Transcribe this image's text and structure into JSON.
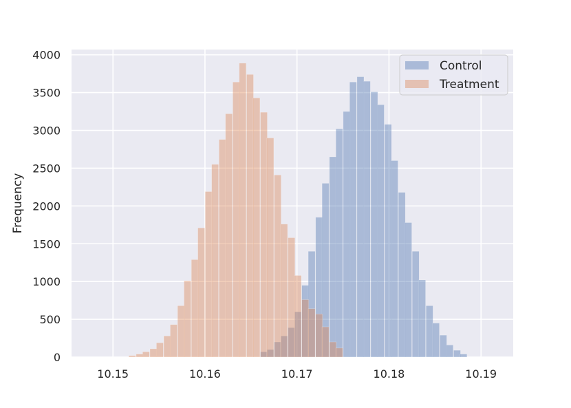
{
  "chart_data": {
    "type": "bar",
    "xlabel": "",
    "ylabel": "Frequency",
    "xlim": [
      10.1455,
      10.1935
    ],
    "ylim": [
      0,
      4070
    ],
    "xticks": [
      10.15,
      10.16,
      10.17,
      10.18,
      10.19
    ],
    "xtick_labels": [
      "10.15",
      "10.16",
      "10.17",
      "10.18",
      "10.19"
    ],
    "yticks": [
      0,
      500,
      1000,
      1500,
      2000,
      2500,
      3000,
      3500,
      4000
    ],
    "ytick_labels": [
      "0",
      "500",
      "1000",
      "1500",
      "2000",
      "2500",
      "3000",
      "3500",
      "4000"
    ],
    "grid": true,
    "legend_position": "top-right",
    "bin_width": 0.00075,
    "series": [
      {
        "name": "Control",
        "color": "#4c72b0",
        "x": [
          10.1664,
          10.1671,
          10.1679,
          10.1686,
          10.1694,
          10.1701,
          10.1709,
          10.1716,
          10.1724,
          10.1731,
          10.1739,
          10.1746,
          10.1754,
          10.1761,
          10.1769,
          10.1776,
          10.1784,
          10.1791,
          10.1799,
          10.1806,
          10.1814,
          10.1821,
          10.1829,
          10.1836,
          10.1844,
          10.1851,
          10.1859,
          10.1866,
          10.1874,
          10.1881
        ],
        "values": [
          70,
          100,
          200,
          280,
          390,
          600,
          950,
          1400,
          1850,
          2300,
          2650,
          3020,
          3250,
          3640,
          3710,
          3650,
          3510,
          3340,
          3080,
          2600,
          2180,
          1780,
          1400,
          1020,
          680,
          450,
          290,
          160,
          90,
          40
        ]
      },
      {
        "name": "Treatment",
        "color": "#dd8452",
        "x": [
          10.1521,
          10.1529,
          10.1536,
          10.1544,
          10.1551,
          10.1559,
          10.1566,
          10.1574,
          10.1581,
          10.1589,
          10.1596,
          10.1604,
          10.1611,
          10.1619,
          10.1626,
          10.1634,
          10.1641,
          10.1649,
          10.1656,
          10.1664,
          10.1671,
          10.1679,
          10.1686,
          10.1694,
          10.1701,
          10.1709,
          10.1716,
          10.1724,
          10.1731,
          10.1739,
          10.1746
        ],
        "values": [
          20,
          40,
          70,
          110,
          190,
          280,
          430,
          680,
          1010,
          1290,
          1710,
          2190,
          2550,
          2880,
          3220,
          3640,
          3890,
          3740,
          3430,
          3240,
          2900,
          2410,
          1760,
          1580,
          1080,
          760,
          640,
          570,
          400,
          200,
          120
        ]
      }
    ]
  }
}
